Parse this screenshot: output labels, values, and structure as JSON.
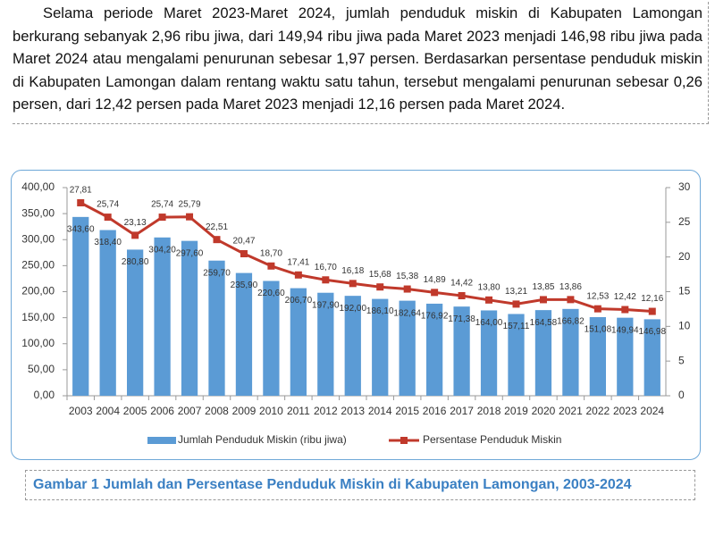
{
  "paragraph": "Selama periode Maret 2023-Maret 2024, jumlah penduduk miskin di Kabupaten Lamongan berkurang sebanyak 2,96 ribu jiwa, dari 149,94 ribu jiwa pada Maret 2023 menjadi 146,98 ribu jiwa pada Maret 2024 atau mengalami penurunan sebesar 1,97 persen. Berdasarkan persentase penduduk miskin di Kabupaten Lamongan dalam rentang waktu satu tahun, tersebut mengalami penurunan sebesar 0,26 persen, dari 12,42 persen pada Maret 2023 menjadi 12,16 persen pada Maret 2024.",
  "chart_data": {
    "type": "bar",
    "categories": [
      "2003",
      "2004",
      "2005",
      "2006",
      "2007",
      "2008",
      "2009",
      "2010",
      "2011",
      "2012",
      "2013",
      "2014",
      "2015",
      "2016",
      "2017",
      "2018",
      "2019",
      "2020",
      "2021",
      "2022",
      "2023",
      "2024"
    ],
    "series": [
      {
        "name": "Jumlah Penduduk Miskin (ribu jiwa)",
        "color": "#5b9bd5",
        "type": "bar",
        "values": [
          343.6,
          318.4,
          280.8,
          304.2,
          297.6,
          259.7,
          235.9,
          220.6,
          206.7,
          197.9,
          192.0,
          186.1,
          182.64,
          176.92,
          171.38,
          164.0,
          157.11,
          164.58,
          166.82,
          151.08,
          149.94,
          146.98
        ],
        "value_labels": [
          "343,60",
          "318,40",
          "280,80",
          "304,20",
          "297,60",
          "259,70",
          "235,90",
          "220,60",
          "206,70",
          "197,90",
          "192,00",
          "186,10",
          "182,64",
          "176,92",
          "171,38",
          "164,00",
          "157,11",
          "164,58",
          "166,82",
          "151,08",
          "149,94",
          "146,98"
        ]
      },
      {
        "name": "Persentase Penduduk Miskin",
        "color": "#c0392b",
        "type": "line",
        "axis": "y2",
        "values": [
          27.81,
          25.74,
          23.13,
          25.74,
          25.79,
          22.51,
          20.47,
          18.7,
          17.41,
          16.7,
          16.18,
          15.68,
          15.38,
          14.89,
          14.42,
          13.8,
          13.21,
          13.85,
          13.86,
          12.53,
          12.42,
          12.16
        ],
        "value_labels": [
          "27,81",
          "25,74",
          "23,13",
          "25,74",
          "25,79",
          "22,51",
          "20,47",
          "18,70",
          "17,41",
          "16,70",
          "16,18",
          "15,68",
          "15,38",
          "14,89",
          "14,42",
          "13,80",
          "13,21",
          "13,85",
          "13,86",
          "12,53",
          "12,42",
          "12,16"
        ]
      }
    ],
    "ylim": [
      0,
      400
    ],
    "yticks": [
      {
        "value": 0,
        "label": "0,00"
      },
      {
        "value": 50,
        "label": "50,00"
      },
      {
        "value": 100,
        "label": "100,00"
      },
      {
        "value": 150,
        "label": "150,00"
      },
      {
        "value": 200,
        "label": "200,00"
      },
      {
        "value": 250,
        "label": "250,00"
      },
      {
        "value": 300,
        "label": "300,00"
      },
      {
        "value": 350,
        "label": "350,00"
      },
      {
        "value": 400,
        "label": "400,00"
      }
    ],
    "y2lim": [
      0,
      30
    ],
    "y2ticks": [
      0,
      5,
      10,
      15,
      20,
      25,
      30
    ],
    "grid": false,
    "legend": "bottom"
  },
  "caption": "Gambar 1 Jumlah dan Persentase Penduduk Miskin di Kabupaten Lamongan, 2003-2024"
}
